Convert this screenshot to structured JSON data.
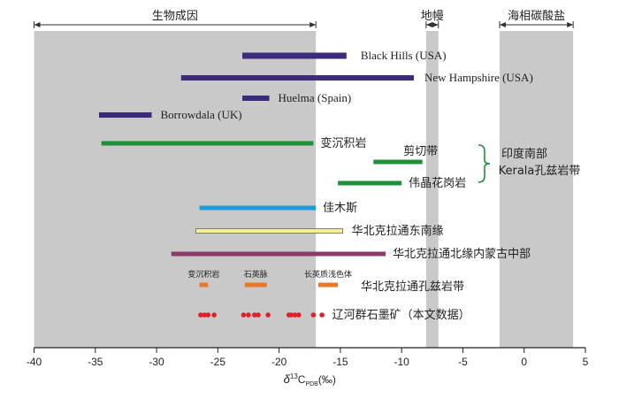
{
  "chart_data": {
    "type": "range",
    "xlabel": "δ¹³C_PDB(‰)",
    "xlim": [
      -40,
      5
    ],
    "xticks": [
      -40,
      -35,
      -30,
      -25,
      -20,
      -15,
      -10,
      -5,
      0,
      5
    ],
    "grid": false,
    "zones": [
      {
        "label": "生物成因",
        "range": [
          -40,
          -17
        ]
      },
      {
        "label": "地幔",
        "range": [
          -8,
          -7
        ]
      },
      {
        "label": "海相碳酸盐",
        "range": [
          -2,
          4
        ]
      }
    ],
    "series": [
      {
        "name": "Black Hills (USA)",
        "range": [
          -23,
          -14.5
        ],
        "color": "#3d2a7a"
      },
      {
        "name": "New Hampshire (USA)",
        "range": [
          -28,
          -9
        ],
        "color": "#3d2a7a"
      },
      {
        "name": "Huelma (Spain)",
        "range": [
          -23,
          -20.8
        ],
        "color": "#3d2a7a"
      },
      {
        "name": "Borrowdala (UK)",
        "range": [
          -34.7,
          -30.4
        ],
        "color": "#3d2a7a"
      },
      {
        "name": "变沉积岩",
        "range": [
          -34.5,
          -17.2
        ],
        "color": "#1f8f3a"
      },
      {
        "name": "剪切带",
        "range": [
          -12.3,
          -8.3
        ],
        "color": "#1f8f3a"
      },
      {
        "name": "伟晶花岗岩",
        "range": [
          -15.2,
          -10
        ],
        "color": "#1f8f3a"
      },
      {
        "name": "佳木斯",
        "range": [
          -26.5,
          -17
        ],
        "color": "#1e9ad6"
      },
      {
        "name": "华北克拉通东南缘",
        "range": [
          -26.8,
          -14.8
        ],
        "color": "#f5f097"
      },
      {
        "name": "华北克拉通北缘内蒙古中部",
        "range": [
          -28.8,
          -11.3
        ],
        "color": "#8c3a68"
      },
      {
        "name": "变沉积岩",
        "range": [
          -26.5,
          -25.8
        ],
        "color": "#e77a2a"
      },
      {
        "name": "石英脉",
        "range": [
          -22.8,
          -21
        ],
        "color": "#e77a2a"
      },
      {
        "name": "长英质浅色体",
        "range": [
          -16.8,
          -15.2
        ],
        "color": "#e77a2a"
      }
    ],
    "points": {
      "name": "辽河群石墨矿（本文数据）",
      "color": "#e21f26",
      "values": [
        -26.4,
        -26.1,
        -25.8,
        -25.3,
        -22.9,
        -22.5,
        -22.0,
        -21.7,
        -20.9,
        -19.2,
        -19.0,
        -18.7,
        -18.4,
        -17.2,
        -16.5
      ]
    },
    "group_labels": [
      {
        "label": "印度南部\nKerala孔兹岩带"
      },
      {
        "label": "华北克拉通孔兹岩带"
      }
    ]
  }
}
